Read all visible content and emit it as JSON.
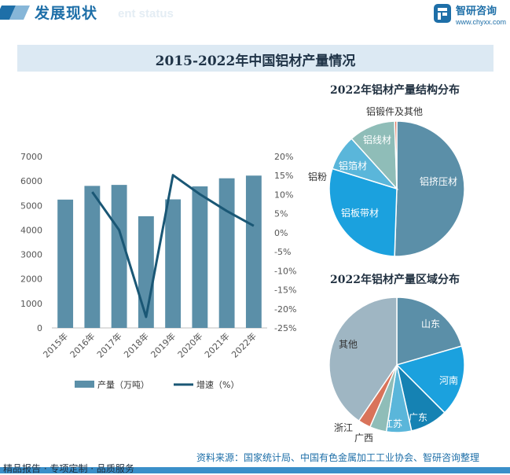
{
  "header": {
    "section_title": "发展现状",
    "ghost_text": "ent status",
    "brand_name": "智研咨询",
    "brand_url": "www.chyxx.com"
  },
  "main_title": "2015-2022年中国铝材产量情况",
  "footer": {
    "left_text": "精品报告 · 专项定制 · 品质服务",
    "source_text": "资料来源：国家统计局、中国有色金属加工工业协会、智研咨询整理"
  },
  "colors": {
    "bar": "#5b8fa8",
    "line": "#1a5775",
    "brand_blue": "#1e6fa8",
    "footer_line": "#3a8fc9"
  },
  "chart_data": [
    {
      "type": "bar",
      "categories": [
        "2015年",
        "2016年",
        "2017年",
        "2018年",
        "2019年",
        "2020年",
        "2021年",
        "2022年"
      ],
      "series": [
        {
          "name": "产量（万吨）",
          "type": "bar",
          "axis": "left",
          "values": [
            5240,
            5800,
            5840,
            4560,
            5250,
            5780,
            6110,
            6220
          ]
        },
        {
          "name": "增速（%）",
          "type": "line",
          "axis": "right",
          "values": [
            null,
            10.7,
            0.7,
            -22.1,
            15.1,
            10.1,
            5.7,
            1.8
          ]
        }
      ],
      "ylim": [
        0,
        7000
      ],
      "yticks": [
        "0",
        "1000",
        "2000",
        "3000",
        "4000",
        "5000",
        "6000",
        "7000"
      ],
      "y2lim": [
        -25,
        20
      ],
      "y2ticks": [
        "-25%",
        "-20%",
        "-15%",
        "-10%",
        "-5%",
        "0%",
        "5%",
        "10%",
        "15%",
        "20%"
      ],
      "legend_position": "bottom",
      "grid": false
    },
    {
      "type": "pie",
      "title": "2022年铝材产量结构分布",
      "slices": [
        {
          "label": "铝挤压材",
          "value": 47.5,
          "color": "#5b8fa8"
        },
        {
          "label": "铝板带材",
          "value": 27.5,
          "color": "#1ba1de"
        },
        {
          "label": "铝箔材",
          "value": 8.0,
          "color": "#5ab6da"
        },
        {
          "label": "铝线材",
          "value": 10.5,
          "color": "#8fbdb8"
        },
        {
          "label": "铝粉",
          "value": 0.0,
          "color": "#5ab6da"
        },
        {
          "label": "铝锻件及其他",
          "value": 0.5,
          "color": "#d9735a"
        }
      ]
    },
    {
      "type": "pie",
      "title": "2022年铝材产量区域分布",
      "slices": [
        {
          "label": "山东",
          "value": 20.5,
          "color": "#5b8fa8"
        },
        {
          "label": "河南",
          "value": 17.0,
          "color": "#1ba1de"
        },
        {
          "label": "广东",
          "value": 9.0,
          "color": "#1582b3"
        },
        {
          "label": "江苏",
          "value": 6.0,
          "color": "#5ab6da"
        },
        {
          "label": "广西",
          "value": 4.0,
          "color": "#8fbdb8"
        },
        {
          "label": "浙江",
          "value": 3.0,
          "color": "#d9735a"
        },
        {
          "label": "其他",
          "value": 40.5,
          "color": "#9fb6c3"
        }
      ]
    }
  ]
}
